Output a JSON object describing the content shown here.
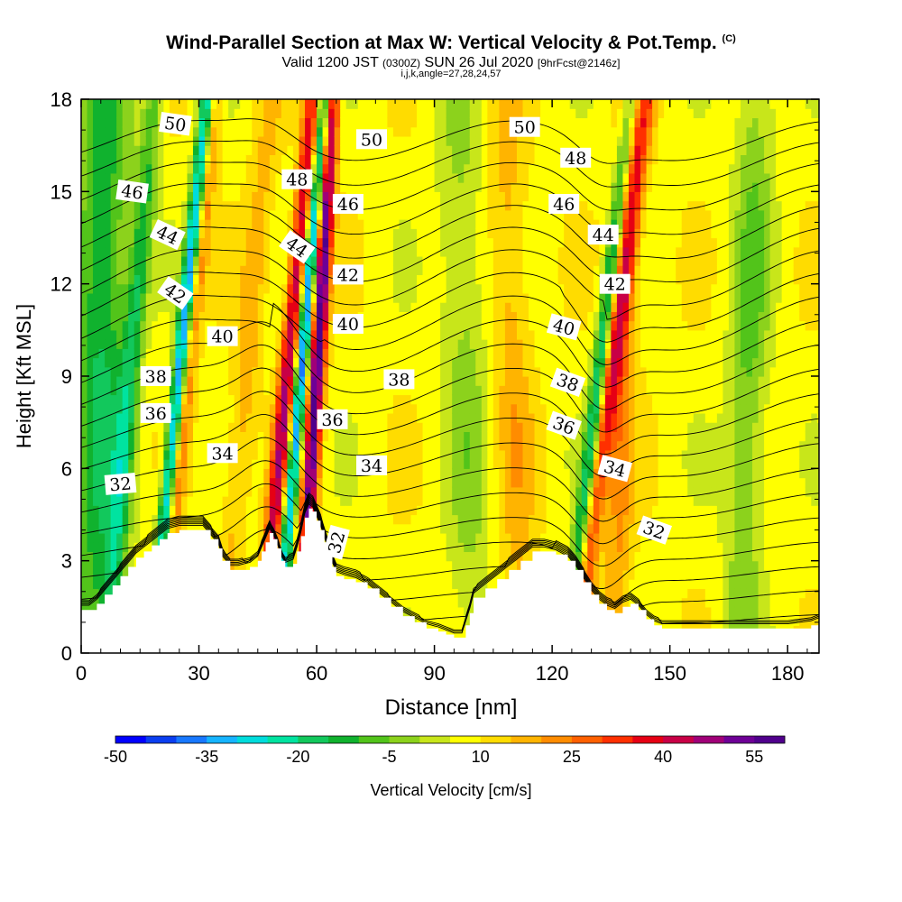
{
  "chart_data": {
    "type": "heatmap",
    "title": "Wind-Parallel Section at Max W: Vertical Velocity & Pot.Temp.",
    "title_mark": "(C)",
    "subtitle": {
      "valid": "Valid 1200 JST",
      "utc": "(0300Z)",
      "date": "SUN 26 Jul 2020",
      "fcst": "[9hrFcst@2146z]"
    },
    "subtitle2": "i,j,k,angle=27,28,24,57",
    "xlabel": "Distance [nm]",
    "ylabel": "Height [Kft MSL]",
    "xlim": [
      0,
      188
    ],
    "ylim": [
      0,
      18
    ],
    "xticks": [
      0,
      30,
      60,
      90,
      120,
      150,
      180
    ],
    "xtick_labels": [
      "0",
      "30",
      "60",
      "90",
      "120",
      "150",
      "180"
    ],
    "yticks": [
      0,
      3,
      6,
      9,
      12,
      15,
      18
    ],
    "ytick_labels": [
      "0",
      "3",
      "6",
      "9",
      "12",
      "15",
      "18"
    ],
    "colorbar": {
      "label": "Vertical Velocity [cm/s]",
      "min": -50,
      "max": 60,
      "step": 5,
      "tick_values": [
        -50,
        -35,
        -20,
        -5,
        10,
        25,
        40,
        55
      ],
      "tick_labels": [
        "-50",
        "-35",
        "-20",
        "-5",
        "10",
        "25",
        "40",
        "55"
      ],
      "colors": [
        "#0000ff",
        "#0a3ef0",
        "#1878ff",
        "#16b4ff",
        "#00dcdc",
        "#00e3a0",
        "#12c85c",
        "#10b22e",
        "#52c41a",
        "#8cd21c",
        "#c8e61a",
        "#ffff00",
        "#ffdc00",
        "#ffb400",
        "#ff8c00",
        "#ff6000",
        "#ff3000",
        "#e60014",
        "#c80046",
        "#a00078",
        "#6e0096",
        "#50008c"
      ]
    },
    "terrain": [
      [
        0,
        1.4
      ],
      [
        2,
        1.4
      ],
      [
        4,
        1.6
      ],
      [
        6,
        1.9
      ],
      [
        8,
        2.2
      ],
      [
        10,
        2.5
      ],
      [
        12,
        2.8
      ],
      [
        14,
        3.1
      ],
      [
        16,
        3.3
      ],
      [
        18,
        3.5
      ],
      [
        20,
        3.7
      ],
      [
        22,
        3.9
      ],
      [
        25,
        4.0
      ],
      [
        28,
        4.0
      ],
      [
        31,
        4.0
      ],
      [
        33,
        3.7
      ],
      [
        35,
        3.4
      ],
      [
        36,
        3.0
      ],
      [
        38,
        2.7
      ],
      [
        40,
        2.7
      ],
      [
        43,
        2.8
      ],
      [
        45,
        3.0
      ],
      [
        46,
        3.3
      ],
      [
        47,
        3.6
      ],
      [
        48,
        3.9
      ],
      [
        49,
        3.7
      ],
      [
        50,
        3.4
      ],
      [
        51,
        3.0
      ],
      [
        52,
        2.8
      ],
      [
        54,
        2.9
      ],
      [
        55,
        3.3
      ],
      [
        56,
        3.8
      ],
      [
        57,
        4.4
      ],
      [
        58,
        4.7
      ],
      [
        59,
        4.6
      ],
      [
        60,
        4.3
      ],
      [
        61,
        4.0
      ],
      [
        62,
        3.6
      ],
      [
        63,
        3.2
      ],
      [
        64,
        2.8
      ],
      [
        65,
        2.5
      ],
      [
        67,
        2.4
      ],
      [
        70,
        2.3
      ],
      [
        73,
        2.1
      ],
      [
        76,
        1.8
      ],
      [
        79,
        1.5
      ],
      [
        82,
        1.2
      ],
      [
        85,
        1.0
      ],
      [
        88,
        0.8
      ],
      [
        91,
        0.7
      ],
      [
        93,
        0.6
      ],
      [
        95,
        0.5
      ],
      [
        97,
        0.5
      ],
      [
        98,
        0.9
      ],
      [
        99,
        1.3
      ],
      [
        100,
        1.8
      ],
      [
        103,
        2.1
      ],
      [
        106,
        2.4
      ],
      [
        109,
        2.7
      ],
      [
        112,
        3.0
      ],
      [
        115,
        3.3
      ],
      [
        118,
        3.3
      ],
      [
        121,
        3.2
      ],
      [
        124,
        3.0
      ],
      [
        126,
        2.7
      ],
      [
        128,
        2.3
      ],
      [
        130,
        1.9
      ],
      [
        132,
        1.6
      ],
      [
        134,
        1.4
      ],
      [
        136,
        1.3
      ],
      [
        138,
        1.5
      ],
      [
        140,
        1.6
      ],
      [
        142,
        1.4
      ],
      [
        144,
        1.1
      ],
      [
        146,
        0.9
      ],
      [
        148,
        0.8
      ],
      [
        152,
        0.8
      ],
      [
        160,
        0.8
      ],
      [
        170,
        0.8
      ],
      [
        180,
        0.8
      ],
      [
        186,
        0.9
      ],
      [
        188,
        1.0
      ]
    ],
    "w_features": [
      {
        "x0": 18,
        "x1": 32,
        "zc": 10,
        "amp": -46,
        "sx": 1.8
      },
      {
        "x0": 16,
        "x1": 30,
        "zc": 10,
        "amp": 18,
        "sx": 2.0,
        "offset": 4.2
      },
      {
        "x0": 12,
        "x1": 24,
        "zc": 10,
        "amp": -20,
        "sx": 2.6,
        "offset": -5.5
      },
      {
        "x0": 46,
        "x1": 59,
        "zc": 10,
        "amp": 38,
        "sx": 2.2
      },
      {
        "x0": 50,
        "x1": 62,
        "zc": 10,
        "amp": -48,
        "sx": 1.6
      },
      {
        "x0": 56,
        "x1": 64,
        "zc": 10,
        "amp": 50,
        "sx": 2.0
      },
      {
        "x0": 36,
        "x1": 48,
        "zc": 10,
        "amp": 10,
        "sx": 3.5
      },
      {
        "x0": 124,
        "x1": 140,
        "zc": 9,
        "amp": -32,
        "sx": 2.0
      },
      {
        "x0": 126,
        "x1": 144,
        "zc": 9,
        "amp": 28,
        "sx": 2.5
      },
      {
        "x0": 136,
        "x1": 140,
        "zc": 9,
        "amp": 14,
        "sx": 3.5
      },
      {
        "x0": 4,
        "x1": 6,
        "zc": 10,
        "amp": -24,
        "sx": 7.0
      },
      {
        "x0": 168,
        "x1": 172,
        "zc": 10,
        "amp": -14,
        "sx": 5.0
      },
      {
        "x0": 100,
        "x1": 96,
        "zc": 10,
        "amp": -10,
        "sx": 6.0
      },
      {
        "x0": 112,
        "x1": 108,
        "zc": 10,
        "amp": 10,
        "sx": 5.0
      }
    ],
    "w_background": 8,
    "theta_levels": [
      27,
      28,
      29,
      30,
      31,
      32,
      33,
      34,
      35,
      36,
      37,
      38,
      39,
      40,
      41,
      42,
      43,
      44,
      45,
      46,
      47,
      48,
      49,
      50,
      51
    ],
    "contour_labels": [
      {
        "text": "50",
        "x": 24,
        "z": 17.2,
        "rot": 8
      },
      {
        "text": "50",
        "x": 74,
        "z": 16.7,
        "rot": 0
      },
      {
        "text": "50",
        "x": 113,
        "z": 17.1,
        "rot": 0
      },
      {
        "text": "48",
        "x": 55,
        "z": 15.4,
        "rot": 0
      },
      {
        "text": "48",
        "x": 126,
        "z": 16.1,
        "rot": 0
      },
      {
        "text": "46",
        "x": 13,
        "z": 15.0,
        "rot": 8
      },
      {
        "text": "46",
        "x": 68,
        "z": 14.6,
        "rot": 0
      },
      {
        "text": "46",
        "x": 123,
        "z": 14.6,
        "rot": 0
      },
      {
        "text": "44",
        "x": 22,
        "z": 13.6,
        "rot": 25
      },
      {
        "text": "44",
        "x": 55,
        "z": 13.2,
        "rot": 35
      },
      {
        "text": "44",
        "x": 133,
        "z": 13.6,
        "rot": 0
      },
      {
        "text": "42",
        "x": 24,
        "z": 11.7,
        "rot": 35
      },
      {
        "text": "42",
        "x": 68,
        "z": 12.3,
        "rot": 0
      },
      {
        "text": "42",
        "x": 136,
        "z": 12.0,
        "rot": 0
      },
      {
        "text": "40",
        "x": 36,
        "z": 10.3,
        "rot": 0
      },
      {
        "text": "40",
        "x": 68,
        "z": 10.7,
        "rot": 0
      },
      {
        "text": "40",
        "x": 123,
        "z": 10.6,
        "rot": 15
      },
      {
        "text": "38",
        "x": 19,
        "z": 9.0,
        "rot": 0
      },
      {
        "text": "38",
        "x": 81,
        "z": 8.9,
        "rot": 0
      },
      {
        "text": "38",
        "x": 124,
        "z": 8.8,
        "rot": 20
      },
      {
        "text": "36",
        "x": 19,
        "z": 7.8,
        "rot": 0
      },
      {
        "text": "36",
        "x": 64,
        "z": 7.6,
        "rot": 0
      },
      {
        "text": "36",
        "x": 123,
        "z": 7.4,
        "rot": 20
      },
      {
        "text": "34",
        "x": 36,
        "z": 6.5,
        "rot": 0
      },
      {
        "text": "34",
        "x": 74,
        "z": 6.1,
        "rot": 0
      },
      {
        "text": "34",
        "x": 136,
        "z": 6.0,
        "rot": 15
      },
      {
        "text": "32",
        "x": 10,
        "z": 5.5,
        "rot": -5
      },
      {
        "text": "32",
        "x": 65,
        "z": 3.6,
        "rot": -75
      },
      {
        "text": "32",
        "x": 146,
        "z": 4.0,
        "rot": 20
      }
    ]
  }
}
